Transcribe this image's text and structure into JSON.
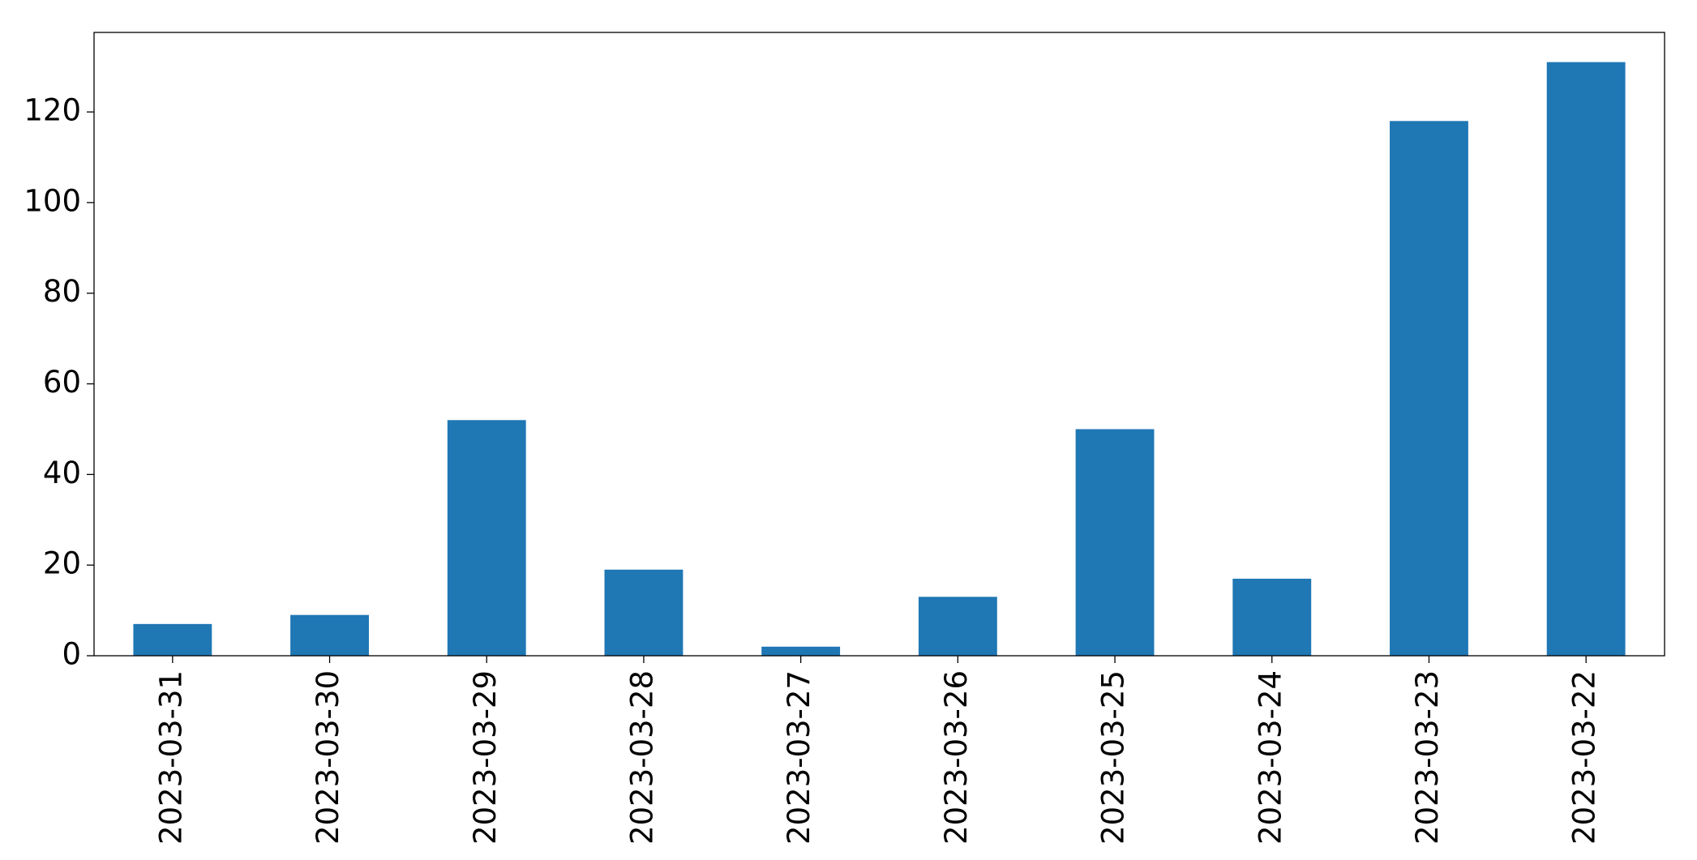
{
  "chart_data": {
    "type": "bar",
    "categories": [
      "2023-03-31",
      "2023-03-30",
      "2023-03-29",
      "2023-03-28",
      "2023-03-27",
      "2023-03-26",
      "2023-03-25",
      "2023-03-24",
      "2023-03-23",
      "2023-03-22"
    ],
    "values": [
      7,
      9,
      52,
      19,
      2,
      13,
      50,
      17,
      118,
      131
    ],
    "color": "#1f77b4",
    "ylim": [
      0,
      137.55
    ],
    "yticks": [
      0,
      20,
      40,
      60,
      80,
      100,
      120
    ],
    "grid": false
  }
}
